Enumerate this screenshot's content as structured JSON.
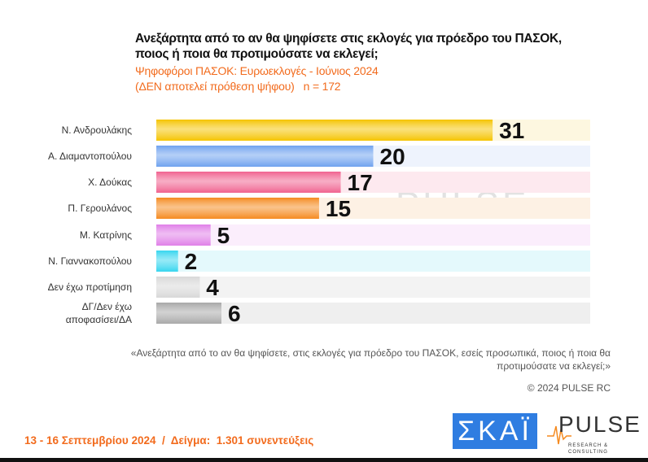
{
  "chart_data": {
    "type": "bar",
    "orientation": "horizontal",
    "title": "Ανεξάρτητα από το αν θα ψηφίσετε στις εκλογές για πρόεδρο του ΠΑΣΟΚ, ποιος ή ποια θα προτιμούσατε να εκλεγεί;",
    "subtitle_line1": "Ψηφοφόροι ΠΑΣΟΚ: Ευρωεκλογές - Ιούνιος 2024",
    "subtitle_line2": "(ΔΕΝ αποτελεί πρόθεση ψήφου)   n = 172",
    "categories": [
      "Ν. Ανδρουλάκης",
      "Α. Διαμαντοπούλου",
      "Χ. Δούκας",
      "Π. Γερουλάνος",
      "Μ. Κατρίνης",
      "Ν. Γιαννακοπούλου",
      "Δεν έχω προτίμηση",
      "ΔΓ/Δεν έχω αποφασίσει/ΔΑ"
    ],
    "values": [
      31,
      20,
      17,
      15,
      5,
      2,
      4,
      6
    ],
    "colors": [
      "#f5c400",
      "#6fa2ef",
      "#f0628f",
      "#f58a1f",
      "#e07fe8",
      "#37d6ef",
      "#d8d8d8",
      "#a8a8a8"
    ],
    "track_colors": [
      "#fdf7e0",
      "#eef3fd",
      "#fde9ef",
      "#fdf1e4",
      "#fbeefc",
      "#e4f9fc",
      "#f3f3f3",
      "#efefef"
    ],
    "xlim": [
      0,
      40
    ]
  },
  "note": "«Ανεξάρτητα από το αν θα ψηφίσετε, στις εκλογές για πρόεδρο του ΠΑΣΟΚ, εσείς προσωπικά, ποιος ή ποια θα προτιμούσατε να εκλεγεί;»",
  "copyright": "© 2024 PULSE RC",
  "footer": "13 - 16 Σεπτεμβρίου 2024  /  Δείγμα:  1.301 συνεντεύξεις",
  "logos": {
    "skai": "ΣΚΑΪ",
    "pulse": "PULSE",
    "pulse_sub": "RESEARCH & CONSULTING"
  }
}
